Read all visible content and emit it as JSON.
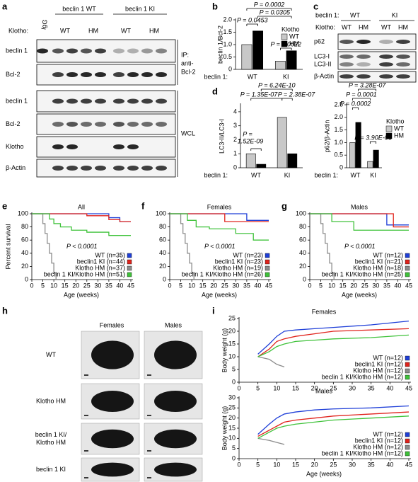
{
  "panel_labels": [
    "a",
    "b",
    "c",
    "d",
    "e",
    "f",
    "g",
    "h",
    "i"
  ],
  "blot_a": {
    "groups": [
      "beclin 1 WT",
      "beclin 1 KI"
    ],
    "igg": "IgG",
    "klotho_label": "Klotho:",
    "lanes": [
      "WT",
      "HM",
      "WT",
      "HM"
    ],
    "rows": [
      "beclin 1",
      "Bcl-2",
      "beclin 1",
      "Bcl-2",
      "Klotho",
      "β-Actin"
    ],
    "ip_label": [
      "IP:",
      "anti-",
      "Bcl-2"
    ],
    "wcl_label": "WCL"
  },
  "blot_c": {
    "group_label": "beclin 1:",
    "groups": [
      "WT",
      "KI"
    ],
    "klotho_label": "Klotho:",
    "lanes": [
      "WT",
      "HM",
      "WT",
      "HM"
    ],
    "rows": [
      "p62",
      "LC3-I",
      "LC3-II",
      "β-Actin"
    ]
  },
  "photos": {
    "columns": [
      "Females",
      "Males"
    ],
    "rows": [
      [
        "WT"
      ],
      [
        "Klotho HM"
      ],
      [
        "beclin 1 KI/",
        "Klotho HM"
      ],
      [
        "beclin 1 KI"
      ]
    ]
  },
  "chart_data": [
    {
      "type": "bar",
      "ylabel": "beclin 1/Bcl-2",
      "xlabel": "beclin 1:",
      "categories": [
        "WT",
        "KI"
      ],
      "legend_title": "Klotho",
      "legend": "upper right",
      "series": [
        {
          "name": "WT",
          "color": "#c8c8c8",
          "values": [
            1.0,
            0.33
          ]
        },
        {
          "name": "HM",
          "color": "#000000",
          "values": [
            1.55,
            0.75
          ]
        }
      ],
      "ylim": [
        0,
        2
      ],
      "yticks": [
        0,
        0.5,
        {
          "value": 1,
          "label": "1.0"
        },
        1.5,
        {
          "value": 2,
          "label": "2.0"
        }
      ],
      "annotations": [
        "P = 0.0002",
        "P = 0.0305",
        "P = 0.0453",
        "P = 0.0022"
      ]
    },
    {
      "type": "bar",
      "ylabel": "LC3-II/LC3-I",
      "xlabel": "beclin 1:",
      "categories": [
        "WT",
        "KI"
      ],
      "series": [
        {
          "name": "WT",
          "color": "#c8c8c8",
          "values": [
            1.0,
            3.6
          ]
        },
        {
          "name": "HM",
          "color": "#000000",
          "values": [
            0.25,
            1.0
          ]
        }
      ],
      "ylim": [
        0,
        4.5
      ],
      "yticks": [
        0,
        1,
        2,
        3,
        4
      ],
      "annotations": [
        "P = 6.24E-10",
        "P = 1.35E-07",
        "P = 2.38E-07",
        "P =",
        "1.52E-09"
      ]
    },
    {
      "type": "bar",
      "ylabel": "p62/β-Actin",
      "xlabel": "beclin 1:",
      "categories": [
        "WT",
        "KI"
      ],
      "legend_title": "Klotho",
      "legend": "right",
      "series": [
        {
          "name": "WT",
          "color": "#c8c8c8",
          "values": [
            1.0,
            0.25
          ]
        },
        {
          "name": "HM",
          "color": "#000000",
          "values": [
            1.8,
            0.7
          ]
        }
      ],
      "ylim": [
        0,
        2.5
      ],
      "yticks": [
        0,
        0.5,
        {
          "value": 1,
          "label": "1.0"
        },
        1.5,
        {
          "value": 2,
          "label": "2.0"
        },
        2.5
      ],
      "annotations": [
        "P = 3.28E-07",
        "P = 0.0001",
        "P = 0.0002",
        "P = 3.90E-06"
      ]
    },
    {
      "type": "line",
      "title": "All",
      "ylabel": "Percent survival",
      "xlabel": "Age (weeks)",
      "annotation": "P < 0.0001",
      "legend": "lower right",
      "xlim": [
        0,
        45
      ],
      "xticks": [
        0,
        5,
        10,
        15,
        20,
        25,
        30,
        35,
        40,
        45
      ],
      "ylim": [
        0,
        100
      ],
      "yticks": [
        0,
        20,
        40,
        60,
        80,
        100
      ],
      "series": [
        {
          "name": "WT (n=35)",
          "color": "#1f3fd8",
          "x": [
            0,
            35,
            35,
            40,
            40,
            45
          ],
          "values": [
            100,
            100,
            94,
            94,
            88,
            88
          ]
        },
        {
          "name": "beclin1 KI (n=44)",
          "color": "#e0231c",
          "x": [
            0,
            25,
            25,
            35,
            35,
            40,
            40,
            45
          ],
          "values": [
            100,
            100,
            97,
            97,
            91,
            91,
            88,
            88
          ]
        },
        {
          "name": "Klotho HM (n=37)",
          "color": "#8c8c8c",
          "x": [
            0,
            5,
            5,
            6,
            6,
            7,
            7,
            8,
            8,
            9,
            9,
            10,
            10,
            11,
            11
          ],
          "values": [
            100,
            100,
            85,
            85,
            70,
            70,
            55,
            55,
            40,
            40,
            25,
            25,
            10,
            10,
            0
          ]
        },
        {
          "name": "beclin 1 KI/Klotho HM (n=51)",
          "color": "#3fc23a",
          "x": [
            0,
            8,
            8,
            10,
            10,
            13,
            13,
            18,
            18,
            25,
            25,
            35,
            35,
            45
          ],
          "values": [
            100,
            100,
            92,
            92,
            85,
            85,
            80,
            80,
            75,
            75,
            72,
            72,
            67,
            67
          ]
        }
      ]
    },
    {
      "type": "line",
      "title": "Females",
      "xlabel": "Age (weeks)",
      "annotation": "P < 0.0001",
      "legend": "lower right",
      "xlim": [
        0,
        45
      ],
      "xticks": [
        0,
        5,
        10,
        15,
        20,
        25,
        30,
        35,
        40,
        45
      ],
      "ylim": [
        0,
        100
      ],
      "yticks": [
        0,
        20,
        40,
        60,
        80,
        100
      ],
      "series": [
        {
          "name": "WT (n=23)",
          "color": "#1f3fd8",
          "x": [
            0,
            35,
            35,
            45
          ],
          "values": [
            100,
            100,
            90,
            90
          ]
        },
        {
          "name": "beclin1 KI (n=23)",
          "color": "#e0231c",
          "x": [
            0,
            25,
            25,
            45
          ],
          "values": [
            100,
            100,
            88,
            88
          ]
        },
        {
          "name": "Klotho HM (n=19)",
          "color": "#8c8c8c",
          "x": [
            0,
            5,
            5,
            6,
            6,
            7,
            7,
            8,
            8,
            9,
            9,
            10,
            10,
            11,
            11
          ],
          "values": [
            100,
            100,
            85,
            85,
            70,
            70,
            55,
            55,
            40,
            40,
            25,
            25,
            10,
            10,
            0
          ]
        },
        {
          "name": "beclin 1 KI/Klotho HM (n=26)",
          "color": "#3fc23a",
          "x": [
            0,
            8,
            8,
            12,
            12,
            18,
            18,
            30,
            30,
            38,
            38,
            45
          ],
          "values": [
            100,
            100,
            90,
            90,
            80,
            80,
            77,
            77,
            70,
            70,
            60,
            60
          ]
        }
      ]
    },
    {
      "type": "line",
      "title": "Males",
      "xlabel": "Age (weeks)",
      "annotation": "P < 0.0001",
      "legend": "lower right",
      "xlim": [
        0,
        45
      ],
      "xticks": [
        0,
        5,
        10,
        15,
        20,
        25,
        30,
        35,
        40,
        45
      ],
      "ylim": [
        0,
        100
      ],
      "yticks": [
        0,
        20,
        40,
        60,
        80,
        100
      ],
      "series": [
        {
          "name": "WT (n=12)",
          "color": "#1f3fd8",
          "x": [
            0,
            35,
            35,
            45
          ],
          "values": [
            100,
            100,
            83,
            83
          ]
        },
        {
          "name": "beclin1 KI (n=21)",
          "color": "#e0231c",
          "x": [
            0,
            38,
            38,
            45
          ],
          "values": [
            100,
            100,
            80,
            80
          ]
        },
        {
          "name": "Klotho HM (n=18)",
          "color": "#8c8c8c",
          "x": [
            0,
            5,
            5,
            6,
            6,
            7,
            7,
            8,
            8,
            9,
            9,
            10,
            10,
            11,
            11
          ],
          "values": [
            100,
            100,
            85,
            85,
            70,
            70,
            55,
            55,
            40,
            40,
            25,
            25,
            10,
            10,
            0
          ]
        },
        {
          "name": "beclin 1 KI/Klotho HM (n=25)",
          "color": "#3fc23a",
          "x": [
            0,
            10,
            10,
            20,
            20,
            45
          ],
          "values": [
            100,
            100,
            88,
            88,
            75,
            75
          ]
        }
      ]
    },
    {
      "type": "line",
      "title": "Females",
      "ylabel": "Body weight (g)",
      "legend": "lower right",
      "xlim": [
        0,
        45
      ],
      "xticks": [
        0,
        5,
        10,
        15,
        20,
        25,
        30,
        35,
        40,
        45
      ],
      "ylim": [
        0,
        25
      ],
      "yticks": [
        0,
        5,
        10,
        15,
        20,
        25
      ],
      "x": [
        5,
        8,
        10,
        12,
        15,
        20,
        25,
        35,
        45
      ],
      "series": [
        {
          "name": "WT (n=12)",
          "color": "#1f3fd8",
          "values": [
            11,
            15,
            18,
            20,
            20.5,
            21,
            21.5,
            22.5,
            24
          ]
        },
        {
          "name": "beclin1 KI (n=12)",
          "color": "#e0231c",
          "values": [
            10,
            13,
            16,
            17,
            18,
            19,
            20,
            20.5,
            21
          ]
        },
        {
          "name": "Klotho HM (n=12)",
          "color": "#8c8c8c",
          "values": [
            10,
            9,
            7,
            6,
            null,
            null,
            null,
            null,
            null
          ]
        },
        {
          "name": "beclin 1 KI/Klotho HM (n=12)",
          "color": "#3fc23a",
          "values": [
            10,
            12,
            14,
            15,
            16,
            16.5,
            17,
            17.5,
            18.5
          ]
        }
      ]
    },
    {
      "type": "line",
      "title": "Males",
      "ylabel": "Body weight (g)",
      "xlabel": "Age (weeks)",
      "legend": "lower right",
      "xlim": [
        0,
        45
      ],
      "xticks": [
        0,
        5,
        10,
        15,
        20,
        25,
        30,
        35,
        40,
        45
      ],
      "ylim": [
        0,
        30
      ],
      "yticks": [
        0,
        5,
        10,
        15,
        20,
        25,
        30
      ],
      "x": [
        5,
        8,
        10,
        12,
        15,
        20,
        25,
        35,
        45
      ],
      "series": [
        {
          "name": "WT (n=12)",
          "color": "#1f3fd8",
          "values": [
            12,
            17,
            20,
            22,
            23,
            24,
            24.5,
            25,
            26
          ]
        },
        {
          "name": "beclin1 KI (n=12)",
          "color": "#e0231c",
          "values": [
            11,
            14,
            16,
            18,
            19,
            20,
            21,
            22,
            23
          ]
        },
        {
          "name": "Klotho HM (n=12)",
          "color": "#8c8c8c",
          "values": [
            10,
            9,
            8,
            7,
            null,
            null,
            null,
            null,
            null
          ]
        },
        {
          "name": "beclin 1 KI/Klotho HM (n=12)",
          "color": "#3fc23a",
          "values": [
            10,
            13,
            15,
            16,
            17,
            18,
            19,
            20,
            21
          ]
        }
      ]
    }
  ]
}
